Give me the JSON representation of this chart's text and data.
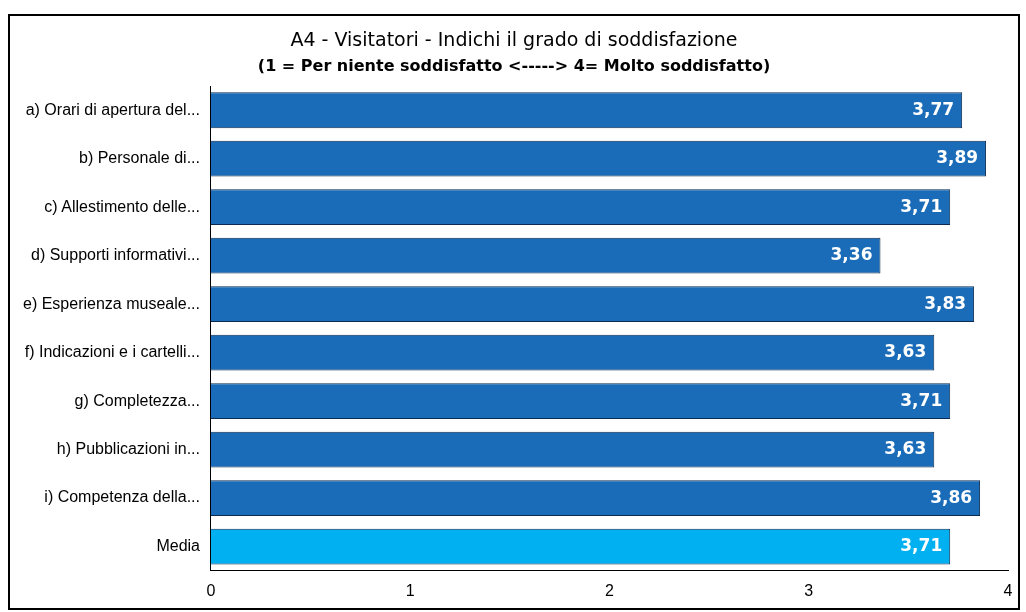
{
  "chart_data": {
    "type": "bar",
    "orientation": "horizontal",
    "title": "A4 - Visitatori - Indichi il grado di soddisfazione",
    "subtitle": "(1 = Per niente soddisfatto <-----> 4= Molto soddisfatto)",
    "categories": [
      "a) Orari di apertura del...",
      "b) Personale di...",
      "c) Allestimento delle...",
      "d) Supporti informativi...",
      "e) Esperienza museale...",
      "f) Indicazioni e i cartelli...",
      "g) Completezza...",
      "h) Pubblicazioni in...",
      "i) Competenza della...",
      "Media"
    ],
    "values": [
      3.77,
      3.89,
      3.71,
      3.36,
      3.83,
      3.63,
      3.71,
      3.63,
      3.86,
      3.71
    ],
    "value_labels": [
      "3,77",
      "3,89",
      "3,71",
      "3,36",
      "3,83",
      "3,63",
      "3,71",
      "3,63",
      "3,86",
      "3,71"
    ],
    "colors": [
      "#1a6cb8",
      "#1a6cb8",
      "#1a6cb8",
      "#1a6cb8",
      "#1a6cb8",
      "#1a6cb8",
      "#1a6cb8",
      "#1a6cb8",
      "#1a6cb8",
      "#00b0f0"
    ],
    "xlim": [
      0,
      4
    ],
    "xticks": [
      0,
      1,
      2,
      3,
      4
    ],
    "grid": false,
    "legend": false
  }
}
